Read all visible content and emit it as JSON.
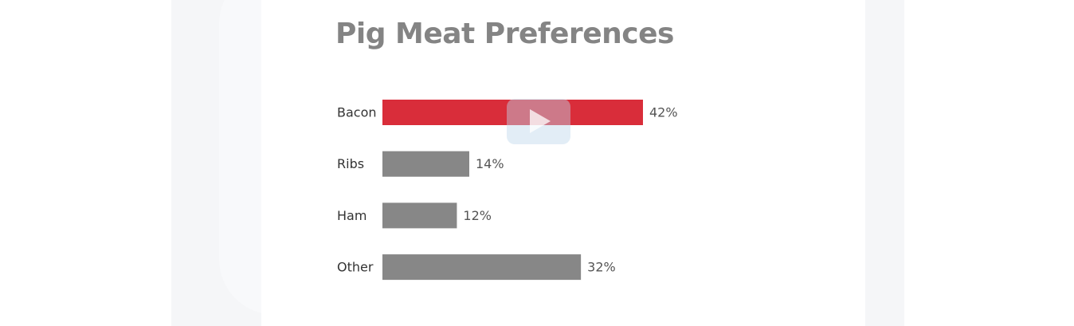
{
  "chart_data": {
    "type": "bar",
    "orientation": "horizontal",
    "title": "Pig Meat Preferences",
    "categories": [
      "Bacon",
      "Ribs",
      "Ham",
      "Other"
    ],
    "values": [
      42,
      14,
      12,
      32
    ],
    "value_labels": [
      "42%",
      "14%",
      "12%",
      "32%"
    ],
    "colors": [
      "#d92d3a",
      "#878787",
      "#878787",
      "#878787"
    ],
    "xlim": [
      0,
      42
    ],
    "grid": false,
    "legend": "none"
  },
  "overlay": {
    "icon": "play-icon"
  }
}
